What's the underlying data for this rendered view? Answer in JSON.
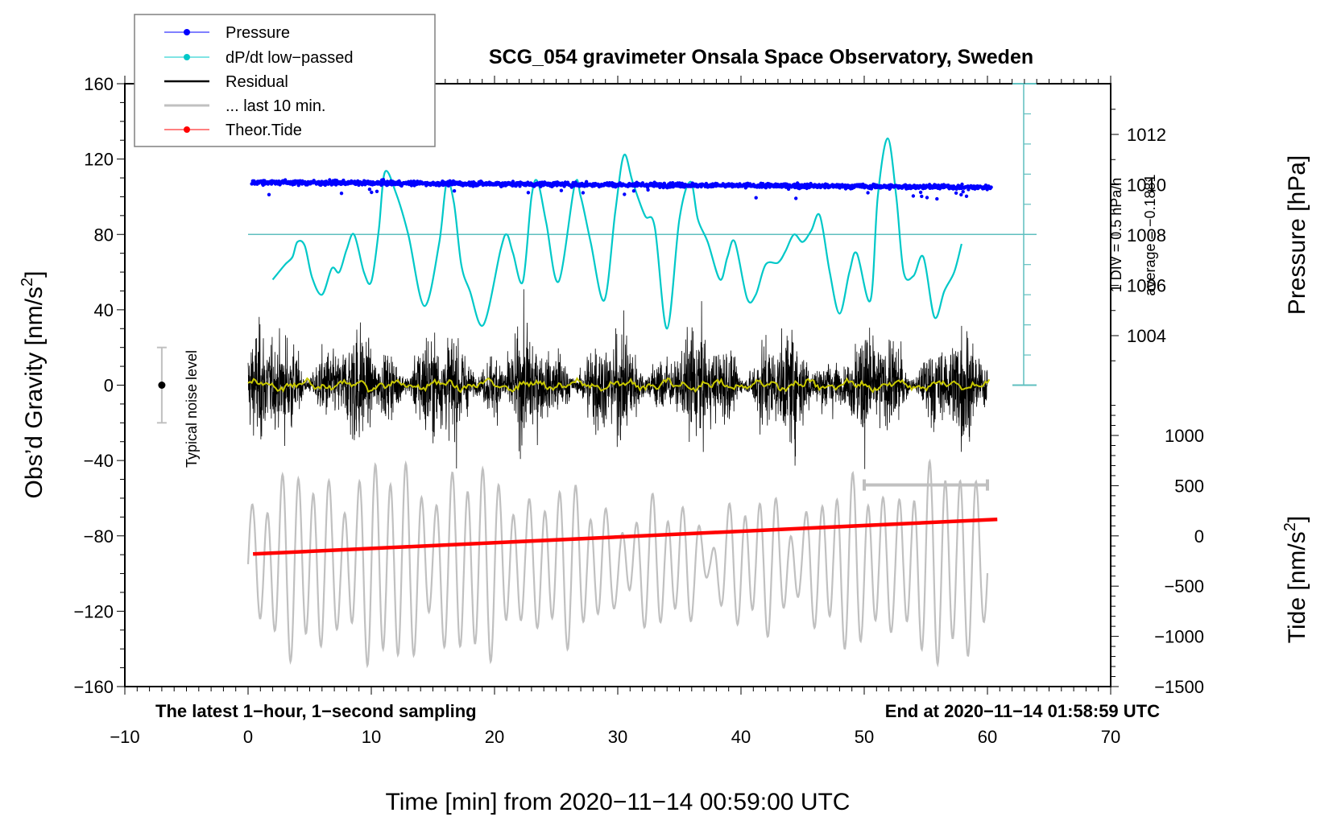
{
  "chart_data": {
    "type": "line",
    "title": "SCG_054 gravimeter Onsala Space Observatory, Sweden",
    "xlabel": "Time [min] from 2020−11−14 00:59:00 UTC",
    "ylabel_left": "Obs’d Gravity [nm/s²]",
    "ylabel_left_parts": {
      "main": "Obs’d Gravity [nm/s",
      "sup": "2",
      "end": "]"
    },
    "ylabel_right_top": "Pressure [hPa]",
    "ylabel_right_bottom": "Tide [nm/s²]",
    "ylabel_right_bottom_parts": {
      "main": "Tide [nm/s",
      "sup": "2",
      "end": "]"
    },
    "xlim": [
      -10,
      70
    ],
    "ylim_left": [
      -160,
      160
    ],
    "ylim_pressure": [
      1002,
      1014
    ],
    "ylim_tide": [
      -1500,
      1000
    ],
    "grid": false,
    "legend_placement": "top-left",
    "x_ticks": [
      "−10",
      "0",
      "10",
      "20",
      "30",
      "40",
      "50",
      "60",
      "70"
    ],
    "x_tick_values": [
      -10,
      0,
      10,
      20,
      30,
      40,
      50,
      60,
      70
    ],
    "y_left_ticks": [
      "160",
      "120",
      "80",
      "40",
      "0",
      "−40",
      "−80",
      "−120",
      "−160"
    ],
    "y_left_tick_values": [
      160,
      120,
      80,
      40,
      0,
      -40,
      -80,
      -120,
      -160
    ],
    "y_pressure_ticks": [
      "1012",
      "1010",
      "1008",
      "1006",
      "1004"
    ],
    "y_pressure_tick_values": [
      1012,
      1010,
      1008,
      1006,
      1004
    ],
    "y_tide_ticks": [
      "1000",
      "500",
      "0",
      "−500",
      "−1000",
      "−1500"
    ],
    "y_tide_tick_values": [
      1000,
      500,
      0,
      -500,
      -1000,
      -1500
    ],
    "legend": [
      {
        "label": "Pressure",
        "color": "#0000ff",
        "marker": true
      },
      {
        "label": "dP/dt low−passed",
        "color": "#00c8c8",
        "marker": true
      },
      {
        "label": "Residual",
        "color": "#000000",
        "marker": false
      },
      {
        "label": "... last 10 min.",
        "color": "#c0c0c0",
        "marker": false
      },
      {
        "label": "Theor.Tide",
        "color": "#ff0000",
        "marker": true
      }
    ],
    "series": [
      {
        "name": "Pressure",
        "color": "#0000ff",
        "axis": "pressure",
        "x_range": [
          0.3,
          60.3
        ],
        "start_hPa": 1010.1,
        "end_hPa": 1009.9,
        "scatter_hPa": 0.12
      },
      {
        "name": "dP/dt low-passed",
        "color": "#00c8c8",
        "axis": "left",
        "baseline_y": 80,
        "x": [
          2.0,
          3.0,
          3.6,
          4.0,
          4.6,
          5.2,
          6.0,
          6.8,
          7.4,
          8.0,
          8.6,
          9.4,
          10.0,
          10.6,
          11.1,
          12.0,
          13.0,
          14.3,
          15.5,
          16.1,
          16.7,
          17.3,
          18.0,
          19.1,
          20.5,
          21.0,
          21.5,
          22.3,
          23.0,
          23.5,
          24.2,
          25.2,
          26.5,
          27.0,
          27.8,
          28.9,
          29.8,
          30.5,
          31.2,
          32.2,
          33.0,
          34.0,
          35.0,
          35.9,
          36.5,
          37.3,
          38.3,
          38.9,
          39.5,
          40.5,
          41.2,
          42.0,
          43.0,
          43.6,
          44.3,
          45.0,
          45.7,
          46.4,
          47.2,
          48.0,
          48.8,
          49.4,
          50.5,
          51.1,
          51.9,
          52.6,
          53.2,
          54.0,
          54.8,
          55.7,
          56.5,
          57.3,
          57.9
        ],
        "y": [
          56,
          64,
          68,
          76,
          74,
          57,
          48,
          62,
          60,
          72,
          80,
          60,
          55,
          82,
          113,
          102,
          80,
          42,
          75,
          107,
          97,
          64,
          50,
          32,
          72,
          80,
          70,
          55,
          100,
          108,
          86,
          55,
          106,
          100,
          76,
          45,
          92,
          122,
          108,
          90,
          84,
          30,
          88,
          108,
          88,
          76,
          56,
          68,
          76,
          46,
          48,
          64,
          65,
          71,
          80,
          76,
          82,
          90,
          60,
          38,
          60,
          70,
          45,
          100,
          131,
          100,
          60,
          58,
          68,
          36,
          50,
          60,
          75
        ]
      },
      {
        "name": "Residual",
        "color": "#000000",
        "axis": "left",
        "x_range": [
          0,
          60
        ],
        "typical_amplitude": 18,
        "max_positive": 57,
        "max_negative": -65,
        "smoothed_color": "#c8c800"
      },
      {
        "name": "... last 10 min.",
        "color": "#c0c0c0",
        "axis": "left",
        "x_range": [
          0,
          60
        ],
        "offset": -95,
        "amplitude": 40
      },
      {
        "name": "Theor.Tide",
        "color": "#ff0000",
        "axis": "tide",
        "x": [
          0.4,
          60.8
        ],
        "y": [
          -180,
          165
        ]
      }
    ],
    "annotations": {
      "pressure_scale_div": "1 DIV = 0.5 hPa/h",
      "pressure_scale_average": "average = −0.1881",
      "noise_label": "Typical noise level",
      "noise_bar": {
        "x": -7,
        "center": 0,
        "low": -20,
        "high": 20
      },
      "last10_bracket": {
        "x_start": 50,
        "x_end": 60,
        "y": -53
      },
      "bottom_left_note": "The latest 1−hour, 1−second sampling",
      "bottom_right_note": "End at 2020−11−14 01:58:59 UTC"
    }
  }
}
